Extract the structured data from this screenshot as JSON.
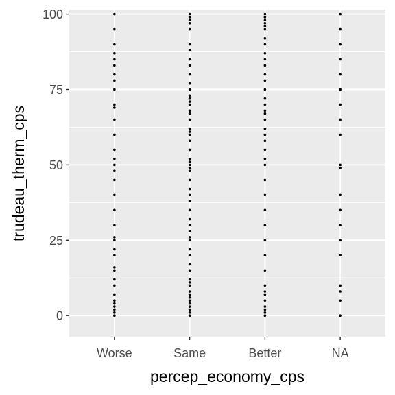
{
  "chart_data": {
    "type": "scatter",
    "xlabel": "percep_economy_cps",
    "ylabel": "trudeau_therm_cps",
    "categories": [
      "Worse",
      "Same",
      "Better",
      "NA"
    ],
    "ylim": [
      -7,
      101.5
    ],
    "y_ticks": [
      0,
      25,
      50,
      75,
      100
    ],
    "y_tick_labels": [
      "0",
      "25",
      "50",
      "75",
      "100"
    ],
    "grid": true,
    "legend": "none",
    "colors": {
      "panel": "#ebebeb",
      "grid": "#ffffff",
      "point": "#000000",
      "tick_text": "#4d4d4d",
      "tick_mark": "#333333"
    },
    "series": [
      {
        "category": "Worse",
        "values": [
          0,
          1,
          2,
          3,
          4,
          5,
          7,
          10,
          12,
          15,
          16,
          20,
          22,
          25,
          26,
          30,
          35,
          40,
          45,
          48,
          50,
          52,
          55,
          60,
          65,
          69,
          70,
          75,
          78,
          80,
          83,
          85,
          87,
          90,
          95,
          100
        ]
      },
      {
        "category": "Same",
        "values": [
          0,
          1,
          2,
          3,
          4,
          5,
          6,
          7,
          8,
          10,
          11,
          12,
          15,
          17,
          20,
          22,
          25,
          26,
          28,
          30,
          32,
          35,
          38,
          40,
          42,
          45,
          48,
          49,
          50,
          51,
          52,
          55,
          58,
          60,
          61,
          62,
          65,
          67,
          68,
          70,
          71,
          72,
          73,
          75,
          77,
          80,
          83,
          85,
          88,
          90,
          95,
          97,
          98,
          99,
          100
        ]
      },
      {
        "category": "Better",
        "values": [
          0,
          1,
          2,
          3,
          5,
          7,
          8,
          10,
          15,
          20,
          25,
          30,
          35,
          40,
          45,
          50,
          52,
          55,
          58,
          60,
          62,
          65,
          67,
          68,
          70,
          72,
          75,
          78,
          80,
          83,
          85,
          87,
          90,
          92,
          95,
          96,
          97,
          98,
          99,
          100
        ]
      },
      {
        "category": "NA",
        "values": [
          0,
          5,
          8,
          10,
          20,
          25,
          30,
          35,
          40,
          49,
          50,
          60,
          65,
          70,
          75,
          80,
          85,
          90,
          95,
          100
        ]
      }
    ]
  }
}
